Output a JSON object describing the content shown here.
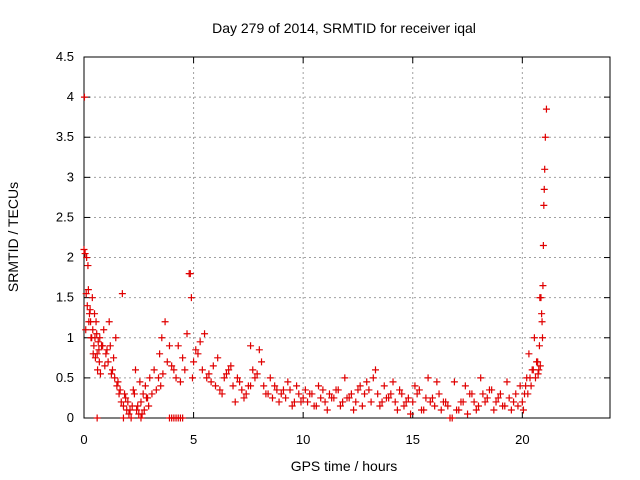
{
  "chart_data": {
    "type": "scatter",
    "title": "Day 279 of 2014, SRMTID for receiver iqal",
    "xlabel": "GPS time / hours",
    "ylabel": "SRMTID / TECUs",
    "xlim": [
      0,
      24
    ],
    "ylim": [
      0,
      4.5
    ],
    "x_ticks": [
      0,
      5,
      10,
      15,
      20
    ],
    "y_ticks": [
      0,
      0.5,
      1,
      1.5,
      2,
      2.5,
      3,
      3.5,
      4,
      4.5
    ],
    "x_tick_labels": [
      "0",
      "5",
      "10",
      "15",
      "20"
    ],
    "y_tick_labels": [
      "0",
      "0.5",
      "1",
      "1.5",
      "2",
      "2.5",
      "3",
      "3.5",
      "4",
      "4.5"
    ],
    "grid": true,
    "marker": "plus",
    "color": "#e00000",
    "series": [
      {
        "name": "SRMTID",
        "x": [
          0.0,
          0.05,
          0.1,
          0.15,
          0.2,
          0.25,
          0.3,
          0.35,
          0.4,
          0.45,
          0.5,
          0.55,
          0.6,
          0.65,
          0.7,
          0.8,
          0.9,
          1.0,
          1.1,
          1.2,
          1.3,
          1.4,
          1.5,
          1.6,
          1.7,
          1.8,
          1.9,
          2.0,
          2.1,
          2.2,
          2.3,
          2.4,
          2.5,
          2.6,
          2.7,
          2.8,
          2.9,
          3.0,
          3.2,
          3.4,
          3.5,
          3.6,
          3.8,
          4.0,
          4.2,
          4.4,
          4.6,
          4.8,
          4.85,
          4.9,
          5.0,
          5.2,
          5.4,
          5.6,
          5.8,
          6.0,
          6.2,
          6.4,
          6.6,
          6.8,
          7.0,
          7.2,
          7.4,
          7.6,
          7.8,
          8.0,
          8.2,
          8.4,
          8.6,
          8.8,
          9.0,
          9.2,
          9.4,
          9.6,
          9.8,
          10.0,
          10.2,
          10.4,
          10.6,
          10.8,
          11.0,
          11.2,
          11.4,
          11.6,
          11.8,
          12.0,
          12.2,
          12.4,
          12.6,
          12.8,
          13.0,
          13.2,
          13.4,
          13.6,
          13.8,
          14.0,
          14.2,
          14.4,
          14.6,
          14.8,
          15.0,
          15.2,
          15.4,
          15.6,
          15.8,
          16.0,
          16.2,
          16.4,
          16.6,
          16.7,
          16.8,
          17.0,
          17.2,
          17.4,
          17.6,
          17.8,
          18.0,
          18.2,
          18.4,
          18.6,
          18.8,
          19.0,
          19.2,
          19.4,
          19.6,
          19.8,
          20.0,
          20.1,
          20.2,
          20.3,
          20.4,
          20.5,
          20.6,
          20.7,
          20.75,
          20.8,
          20.85,
          20.9,
          20.92,
          20.94,
          20.96,
          20.98,
          21.0,
          21.02,
          21.05,
          21.1,
          0.02,
          0.08,
          0.12,
          0.18,
          0.22,
          0.28,
          0.32,
          0.38,
          0.42,
          0.48,
          0.52,
          0.58,
          0.62,
          0.68,
          0.72,
          0.75,
          0.85,
          0.95,
          1.05,
          1.15,
          1.25,
          1.35,
          1.45,
          1.55,
          1.65,
          1.75,
          1.85,
          1.95,
          2.05,
          2.15,
          2.25,
          2.35,
          2.45,
          2.55,
          2.65,
          2.75,
          2.85,
          2.95,
          3.1,
          3.3,
          3.45,
          3.55,
          3.7,
          3.9,
          4.1,
          4.3,
          4.5,
          4.7,
          4.95,
          5.1,
          5.3,
          5.5,
          5.7,
          5.9,
          6.1,
          6.3,
          6.5,
          6.7,
          6.9,
          7.1,
          7.3,
          7.5,
          7.7,
          7.9,
          8.1,
          8.3,
          8.5,
          8.7,
          8.9,
          9.1,
          9.3,
          9.5,
          9.7,
          9.9,
          10.1,
          10.3,
          10.5,
          10.7,
          10.9,
          11.1,
          11.3,
          11.5,
          11.7,
          11.9,
          12.1,
          12.3,
          12.5,
          12.7,
          12.9,
          13.1,
          13.3,
          13.5,
          13.7,
          13.9,
          14.1,
          14.3,
          14.5,
          14.7,
          14.9,
          15.1,
          15.3,
          15.5,
          15.7,
          15.9,
          16.1,
          16.3,
          16.5,
          16.9,
          17.1,
          17.3,
          17.5,
          17.7,
          17.9,
          18.1,
          18.3,
          18.5,
          18.7,
          18.9,
          19.1,
          19.3,
          19.5,
          19.7,
          19.9,
          20.05,
          20.15,
          20.25,
          20.35,
          20.45,
          20.55,
          20.65,
          20.72,
          20.78,
          20.82,
          20.88,
          0.6,
          1.8,
          2.6,
          3.9,
          4.0,
          4.1,
          4.2,
          4.3,
          4.4,
          4.5,
          7.6
        ],
        "y": [
          2.1,
          2.05,
          1.55,
          1.4,
          1.6,
          1.3,
          1.2,
          1.0,
          1.1,
          0.9,
          1.0,
          1.2,
          0.8,
          0.95,
          0.7,
          0.9,
          1.1,
          0.8,
          0.7,
          0.9,
          0.6,
          0.5,
          0.4,
          0.3,
          0.2,
          0.15,
          0.25,
          0.2,
          0.1,
          0.15,
          0.3,
          0.1,
          0.05,
          0.2,
          0.3,
          0.4,
          0.25,
          0.5,
          0.6,
          0.5,
          0.4,
          0.55,
          0.7,
          0.65,
          0.5,
          0.45,
          0.6,
          1.8,
          1.8,
          1.5,
          0.7,
          0.8,
          0.6,
          0.5,
          0.45,
          0.4,
          0.35,
          0.5,
          0.6,
          0.4,
          0.5,
          0.35,
          0.3,
          0.4,
          0.5,
          0.85,
          0.4,
          0.3,
          0.25,
          0.35,
          0.3,
          0.25,
          0.35,
          0.2,
          0.3,
          0.25,
          0.2,
          0.3,
          0.15,
          0.25,
          0.2,
          0.3,
          0.25,
          0.35,
          0.2,
          0.25,
          0.3,
          0.2,
          0.4,
          0.3,
          0.35,
          0.5,
          0.3,
          0.2,
          0.25,
          0.3,
          0.2,
          0.35,
          0.15,
          0.25,
          0.2,
          0.3,
          0.1,
          0.25,
          0.2,
          0.15,
          0.3,
          0.2,
          0.15,
          0.0,
          0.0,
          0.1,
          0.2,
          0.4,
          0.3,
          0.2,
          0.15,
          0.3,
          0.25,
          0.35,
          0.2,
          0.3,
          0.15,
          0.25,
          0.2,
          0.15,
          0.2,
          0.3,
          0.5,
          0.8,
          0.4,
          0.6,
          0.5,
          0.7,
          0.6,
          1.5,
          1.5,
          1.2,
          1.0,
          1.65,
          2.15,
          2.65,
          2.85,
          3.1,
          3.5,
          3.85,
          4.0,
          1.1,
          2.0,
          1.9,
          1.2,
          1.35,
          1.0,
          1.5,
          0.8,
          1.3,
          0.75,
          1.05,
          0.6,
          0.85,
          1.0,
          0.55,
          0.9,
          0.65,
          0.85,
          1.2,
          0.55,
          0.75,
          1.0,
          0.45,
          0.35,
          1.55,
          0.3,
          0.1,
          0.05,
          0.0,
          0.35,
          0.6,
          0.15,
          0.45,
          0.05,
          0.1,
          0.25,
          0.15,
          0.3,
          0.35,
          0.8,
          1.0,
          1.2,
          0.9,
          0.6,
          0.9,
          0.75,
          1.05,
          0.5,
          0.85,
          0.95,
          1.05,
          0.55,
          0.65,
          0.75,
          0.3,
          0.55,
          0.65,
          0.2,
          0.45,
          0.25,
          0.4,
          0.6,
          0.55,
          0.7,
          0.3,
          0.5,
          0.4,
          0.2,
          0.35,
          0.45,
          0.15,
          0.4,
          0.2,
          0.35,
          0.3,
          0.15,
          0.4,
          0.35,
          0.1,
          0.25,
          0.35,
          0.15,
          0.5,
          0.25,
          0.1,
          0.35,
          0.15,
          0.45,
          0.2,
          0.6,
          0.15,
          0.4,
          0.25,
          0.45,
          0.1,
          0.3,
          0.2,
          0.05,
          0.4,
          0.35,
          0.1,
          0.5,
          0.25,
          0.45,
          0.1,
          0.2,
          0.45,
          0.1,
          0.2,
          0.05,
          0.3,
          0.1,
          0.5,
          0.2,
          0.35,
          0.1,
          0.25,
          0.15,
          0.45,
          0.1,
          0.3,
          0.4,
          0.1,
          0.4,
          0.3,
          0.5,
          0.6,
          1.0,
          0.7,
          0.55,
          0.9,
          0.65,
          1.3,
          0.0,
          0.0,
          0.0,
          0.0,
          0.0,
          0.0,
          0.0,
          0.0,
          0.0,
          0.0,
          0.9
        ]
      }
    ]
  }
}
